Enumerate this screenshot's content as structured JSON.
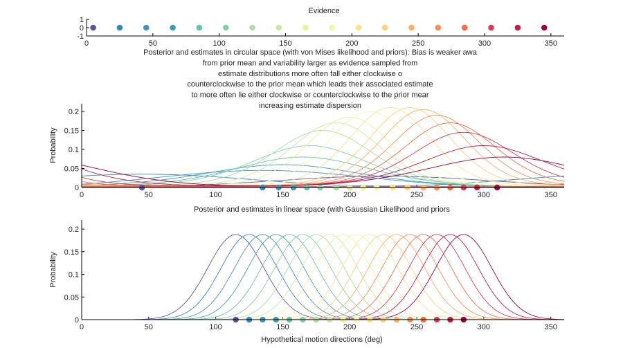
{
  "figure": {
    "xlabel": "Hypothetical motion directions (deg)"
  },
  "colors": [
    "#5e4fa2",
    "#3288bd",
    "#4393c3",
    "#3e9fb3",
    "#66c2a5",
    "#83d0a4",
    "#abdda4",
    "#cbe99e",
    "#e6f598",
    "#f2f7a8",
    "#fee08b",
    "#fed077",
    "#fdae61",
    "#f88d52",
    "#f46d43",
    "#d53e4f",
    "#be1e45",
    "#9e0142"
  ],
  "chart_data": [
    {
      "id": "evidence",
      "type": "scatter",
      "title": "Evidence",
      "xlim": [
        0,
        360
      ],
      "ylim": [
        -1,
        1
      ],
      "xticks": [
        0,
        50,
        100,
        150,
        200,
        250,
        300,
        350
      ],
      "yticks": [
        -1,
        0,
        1
      ],
      "x": [
        5,
        25,
        45,
        65,
        85,
        105,
        125,
        145,
        165,
        185,
        205,
        225,
        245,
        265,
        285,
        305,
        325,
        345
      ],
      "y": [
        0,
        0,
        0,
        0,
        0,
        0,
        0,
        0,
        0,
        0,
        0,
        0,
        0,
        0,
        0,
        0,
        0,
        0
      ]
    },
    {
      "id": "circular",
      "type": "line",
      "title_lines": [
        "Posterior and estimates in circular space (with von Mises likelihood and priors): Bias is weaker awa",
        "from prior mean and variability larger as evidence sampled from",
        "estimate distributions more often fall either clockwise o",
        "counterclockwise to the prior mean which leads their associated estimate",
        "to more often lie either clockwise or counterclockwise to the prior mear",
        "increasing estimate dispersion"
      ],
      "ylabel": "Probability",
      "xlim": [
        0,
        360
      ],
      "ylim": [
        0,
        0.22
      ],
      "xticks": [
        0,
        50,
        100,
        150,
        200,
        250,
        300,
        350
      ],
      "yticks": [
        0,
        0.05,
        0.1,
        0.15,
        0.2
      ],
      "series": [
        {
          "peak_x": 225,
          "peak_y": 0.03,
          "width": 120
        },
        {
          "peak_x": 45,
          "peak_y": 0.035,
          "width": 200
        },
        {
          "peak_x": 135,
          "peak_y": 0.045,
          "width": 120
        },
        {
          "peak_x": 150,
          "peak_y": 0.06,
          "width": 60
        },
        {
          "peak_x": 165,
          "peak_y": 0.08,
          "width": 50
        },
        {
          "peak_x": 170,
          "peak_y": 0.11,
          "width": 42
        },
        {
          "peak_x": 180,
          "peak_y": 0.15,
          "width": 36
        },
        {
          "peak_x": 190,
          "peak_y": 0.17,
          "width": 33
        },
        {
          "peak_x": 200,
          "peak_y": 0.185,
          "width": 31
        },
        {
          "peak_x": 215,
          "peak_y": 0.2,
          "width": 30
        },
        {
          "peak_x": 230,
          "peak_y": 0.21,
          "width": 30
        },
        {
          "peak_x": 245,
          "peak_y": 0.21,
          "width": 30
        },
        {
          "peak_x": 255,
          "peak_y": 0.205,
          "width": 31
        },
        {
          "peak_x": 265,
          "peak_y": 0.19,
          "width": 32
        },
        {
          "peak_x": 275,
          "peak_y": 0.17,
          "width": 34
        },
        {
          "peak_x": 285,
          "peak_y": 0.145,
          "width": 37
        },
        {
          "peak_x": 300,
          "peak_y": 0.11,
          "width": 45
        },
        {
          "peak_x": 315,
          "peak_y": 0.08,
          "width": 60
        }
      ],
      "estimates_x": [
        45,
        135,
        147,
        158,
        168,
        178,
        190,
        200,
        210,
        220,
        232,
        243,
        255,
        265,
        275,
        285,
        295,
        310
      ],
      "estimates_y": [
        0,
        0,
        0,
        0,
        0,
        0,
        0,
        0,
        0,
        0,
        0,
        0,
        0,
        0,
        0,
        0,
        0,
        0
      ]
    },
    {
      "id": "linear",
      "type": "line",
      "title": "Posterior and estimates in linear space (with Gaussian Likelihood and priors",
      "ylabel": "Probability",
      "xlim": [
        0,
        360
      ],
      "ylim": [
        0,
        0.22
      ],
      "xticks": [
        0,
        50,
        100,
        150,
        200,
        250,
        300,
        350
      ],
      "yticks": [
        0,
        0.05,
        0.1,
        0.15,
        0.2
      ],
      "series": [
        {
          "peak_x": 115,
          "peak_y": 0.188
        },
        {
          "peak_x": 125,
          "peak_y": 0.188
        },
        {
          "peak_x": 135,
          "peak_y": 0.188
        },
        {
          "peak_x": 145,
          "peak_y": 0.188
        },
        {
          "peak_x": 155,
          "peak_y": 0.188
        },
        {
          "peak_x": 165,
          "peak_y": 0.188
        },
        {
          "peak_x": 175,
          "peak_y": 0.188
        },
        {
          "peak_x": 185,
          "peak_y": 0.188
        },
        {
          "peak_x": 195,
          "peak_y": 0.188
        },
        {
          "peak_x": 205,
          "peak_y": 0.188
        },
        {
          "peak_x": 215,
          "peak_y": 0.188
        },
        {
          "peak_x": 225,
          "peak_y": 0.188
        },
        {
          "peak_x": 235,
          "peak_y": 0.188
        },
        {
          "peak_x": 245,
          "peak_y": 0.188
        },
        {
          "peak_x": 255,
          "peak_y": 0.188
        },
        {
          "peak_x": 265,
          "peak_y": 0.188
        },
        {
          "peak_x": 275,
          "peak_y": 0.188
        },
        {
          "peak_x": 285,
          "peak_y": 0.188
        }
      ],
      "sd": 21,
      "estimates_x": [
        115,
        125,
        135,
        145,
        155,
        165,
        175,
        185,
        195,
        205,
        215,
        225,
        235,
        245,
        255,
        265,
        275,
        285
      ],
      "estimates_y": [
        0,
        0,
        0,
        0,
        0,
        0,
        0,
        0,
        0,
        0,
        0,
        0,
        0,
        0,
        0,
        0,
        0,
        0
      ]
    }
  ]
}
